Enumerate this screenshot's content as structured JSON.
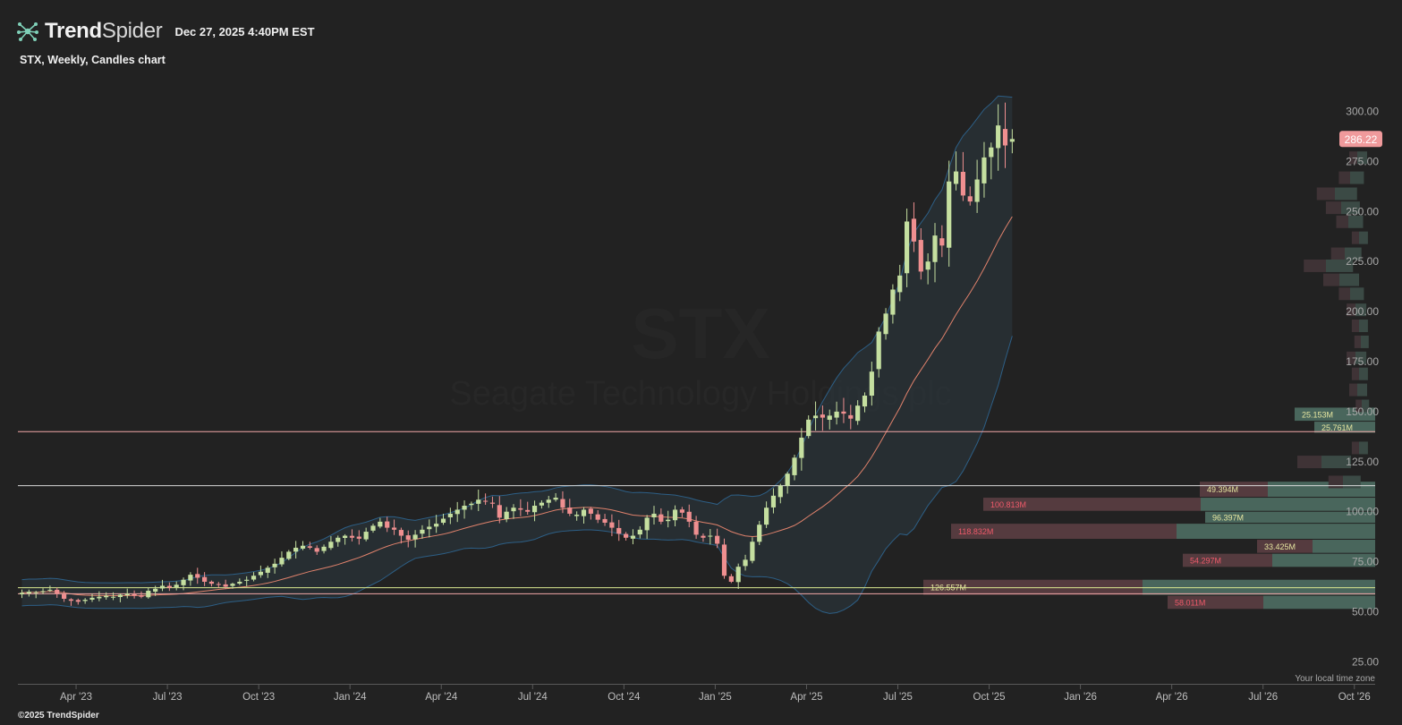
{
  "header": {
    "brand_bold": "Trend",
    "brand_light": "Spider",
    "timestamp": "Dec 27, 2025 4:40PM EST",
    "subtitle": "STX, Weekly, Candles chart",
    "copyright": "©2025 TrendSpider",
    "local_time_note": "Your local time zone"
  },
  "icons": {
    "logo": "trendspider-web-icon"
  },
  "colors": {
    "background": "#222222",
    "up": "#c5dfa0",
    "down": "#ef8f90",
    "bollinger": "#2d5f86",
    "ma": "#e0826c",
    "price_tag": "#f09a9c",
    "vp_up": "#49665c",
    "vp_down": "#553b3f"
  },
  "chart_data": {
    "type": "candlestick",
    "ticker": "STX",
    "company": "Seagate Technology Holdings plc",
    "interval": "Weekly",
    "last_price": "286.22",
    "y_ticks": [
      "300.00",
      "275.00",
      "250.00",
      "225.00",
      "200.00",
      "175.00",
      "150.00",
      "125.00",
      "100.00",
      "75.00",
      "50.00",
      "25.00"
    ],
    "y_tick_values": [
      300,
      275,
      250,
      225,
      200,
      175,
      150,
      125,
      100,
      75,
      50,
      25
    ],
    "x_ticks": [
      {
        "label": "Apr '23",
        "t": 3
      },
      {
        "label": "Jul '23",
        "t": 16
      },
      {
        "label": "Oct '23",
        "t": 29
      },
      {
        "label": "Jan '24",
        "t": 42
      },
      {
        "label": "Apr '24",
        "t": 55
      },
      {
        "label": "Jul '24",
        "t": 68
      },
      {
        "label": "Oct '24",
        "t": 81
      },
      {
        "label": "Jan '25",
        "t": 94
      },
      {
        "label": "Apr '25",
        "t": 107
      },
      {
        "label": "Jul '25",
        "t": 120
      },
      {
        "label": "Oct '25",
        "t": 133
      },
      {
        "label": "Jan '26",
        "t": 146
      },
      {
        "label": "Apr '26",
        "t": 159
      },
      {
        "label": "Jul '26",
        "t": 172
      },
      {
        "label": "Oct '26",
        "t": 185
      }
    ],
    "closes": [
      59.5,
      60.0,
      59.8,
      60.3,
      61.0,
      59.0,
      56.5,
      55.5,
      55.0,
      56.0,
      57.0,
      57.5,
      58.0,
      57.5,
      58.5,
      59.0,
      58.0,
      57.5,
      60.5,
      61.5,
      63.0,
      62.0,
      63.5,
      66.0,
      68.5,
      67.0,
      65.0,
      64.0,
      63.5,
      62.5,
      64.0,
      65.0,
      66.0,
      68.0,
      70.0,
      72.0,
      74.0,
      77.0,
      80.0,
      82.0,
      83.0,
      82.0,
      80.0,
      82.5,
      85.0,
      87.0,
      88.0,
      87.0,
      86.5,
      90.0,
      93.0,
      95.0,
      92.0,
      91.0,
      88.0,
      86.0,
      88.5,
      91.0,
      92.5,
      94.0,
      96.5,
      99.0,
      101.0,
      103.0,
      104.0,
      106.0,
      105.0,
      104.0,
      97.0,
      100.0,
      102.0,
      101.0,
      100.0,
      103.0,
      104.5,
      106.0,
      107.0,
      102.0,
      99.0,
      98.5,
      101.0,
      99.0,
      96.0,
      94.5,
      92.0,
      89.0,
      87.0,
      88.0,
      91.0,
      97.0,
      99.0,
      95.0,
      96.0,
      101.0,
      99.5,
      95.0,
      88.5,
      87.0,
      88.0,
      84.0,
      68.0,
      65.0,
      72.5,
      76.0,
      85.0,
      93.5,
      102.0,
      108.0,
      113.0,
      119.0,
      127.0,
      137.0,
      146.0,
      148.0,
      147.0,
      148.0,
      150.0,
      149.0,
      146.5,
      153.0,
      158.0,
      170.0,
      190.0,
      199.0,
      211.0,
      218.0,
      245.0,
      235.0,
      220.0,
      225.0,
      238.0,
      233.0,
      265.0,
      270.0,
      258.0,
      255.0,
      266.0,
      277.0,
      282.0,
      293.0,
      283.0,
      286.22
    ],
    "volume_profile": [
      {
        "price_low": 145,
        "price_high": 152,
        "up_width": 90,
        "down_width": 0,
        "label": "25.153M"
      },
      {
        "price_low": 139,
        "price_high": 145,
        "up_width": 68,
        "down_width": 0,
        "label": "25.761M"
      },
      {
        "price_low": 107,
        "price_high": 115,
        "up_width": 120,
        "down_width": 76,
        "label": "49.394M"
      },
      {
        "price_low": 100,
        "price_high": 107,
        "up_width": 195,
        "down_width": 243,
        "label": "100.813M"
      },
      {
        "price_low": 94,
        "price_high": 100,
        "up_width": 190,
        "down_width": 0,
        "label": "96.397M"
      },
      {
        "price_low": 86,
        "price_high": 94,
        "up_width": 222,
        "down_width": 252,
        "label": "118.832M"
      },
      {
        "price_low": 79,
        "price_high": 86,
        "up_width": 70,
        "down_width": 62,
        "label": "33.425M"
      },
      {
        "price_low": 72,
        "price_high": 79,
        "up_width": 115,
        "down_width": 100,
        "label": "54.297M"
      },
      {
        "price_low": 58,
        "price_high": 66,
        "up_width": 260,
        "down_width": 245,
        "label": "126.557M"
      },
      {
        "price_low": 51,
        "price_high": 58,
        "up_width": 125,
        "down_width": 107,
        "label": "58.011M"
      }
    ],
    "horizontal_lines": [
      {
        "price": 140,
        "color": "#f3a7a7"
      },
      {
        "price": 113,
        "color": "#d8d8d8"
      },
      {
        "price": 62,
        "color": "#d9e78f"
      },
      {
        "price": 59,
        "color": "#f3a7a7"
      }
    ]
  }
}
